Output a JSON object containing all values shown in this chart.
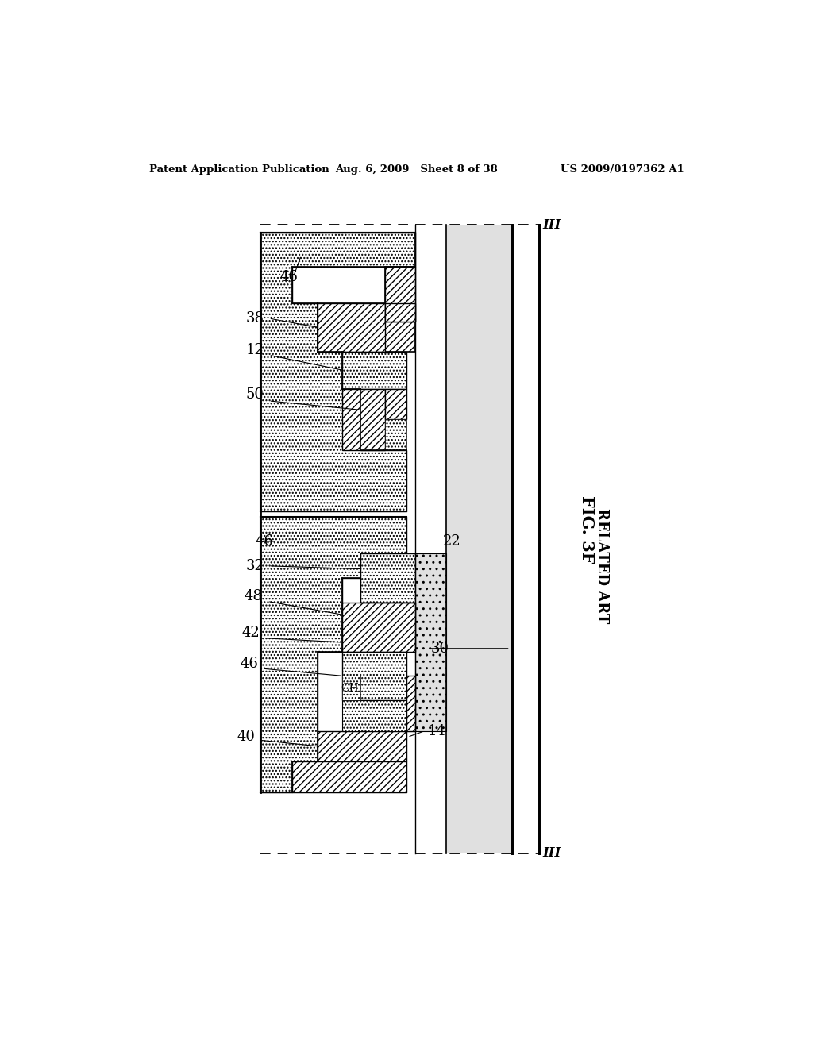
{
  "header_left": "Patent Application Publication",
  "header_center": "Aug. 6, 2009   Sheet 8 of 38",
  "header_right": "US 2009/0197362 A1",
  "fig_label": "FIG. 3F",
  "fig_sublabel": "RELATED ART",
  "bg_color": "#ffffff"
}
